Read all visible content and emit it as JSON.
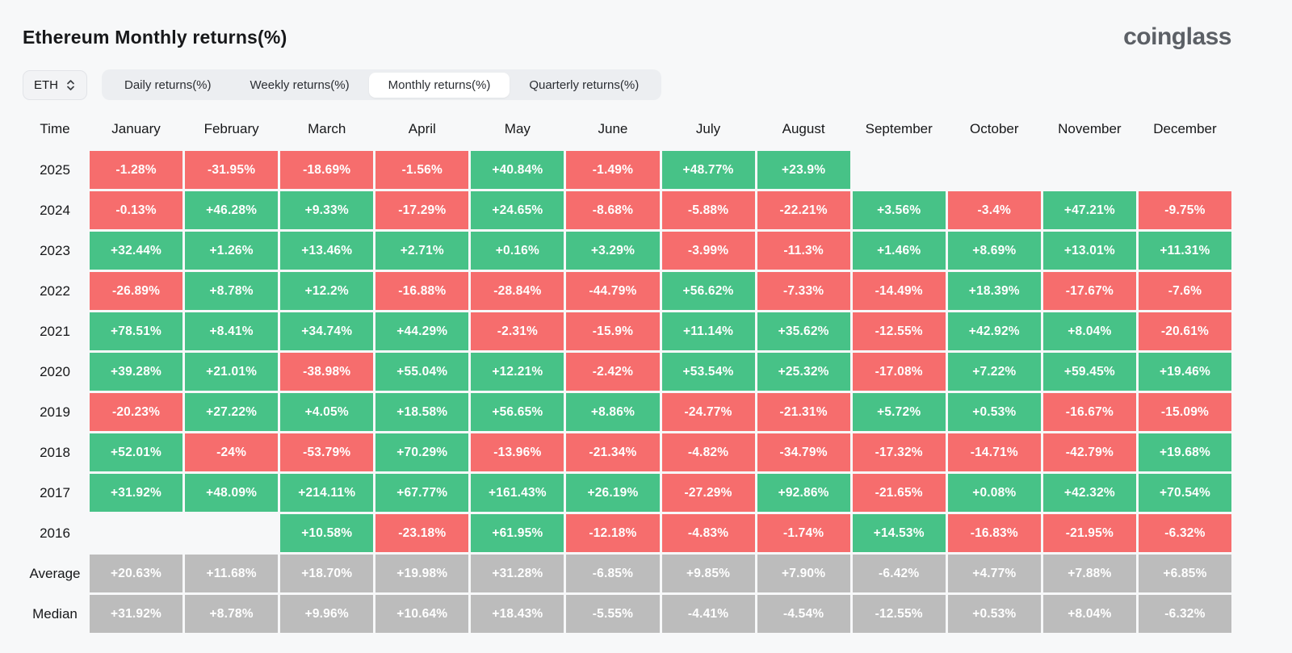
{
  "header": {
    "title": "Ethereum Monthly returns(%)",
    "logo_text": "coinglass"
  },
  "controls": {
    "symbol_select": {
      "value": "ETH"
    },
    "tabs": [
      {
        "label": "Daily returns(%)",
        "active": false
      },
      {
        "label": "Weekly returns(%)",
        "active": false
      },
      {
        "label": "Monthly returns(%)",
        "active": true
      },
      {
        "label": "Quarterly returns(%)",
        "active": false
      }
    ]
  },
  "colors": {
    "positive": "#47c287",
    "negative": "#f66d6d",
    "summary": "#bcbcbc",
    "page_bg": "#f7f8f9"
  },
  "chart_data": {
    "type": "heatmap",
    "title": "Ethereum Monthly returns(%)",
    "unit": "%",
    "legend": "green = positive monthly return, red = negative, gray = summary rows",
    "columns": [
      "Time",
      "January",
      "February",
      "March",
      "April",
      "May",
      "June",
      "July",
      "August",
      "September",
      "October",
      "November",
      "December"
    ],
    "rows": [
      {
        "label": "2025",
        "kind": "year",
        "values": [
          "-1.28%",
          "-31.95%",
          "-18.69%",
          "-1.56%",
          "+40.84%",
          "-1.49%",
          "+48.77%",
          "+23.9%",
          "",
          "",
          "",
          ""
        ]
      },
      {
        "label": "2024",
        "kind": "year",
        "values": [
          "-0.13%",
          "+46.28%",
          "+9.33%",
          "-17.29%",
          "+24.65%",
          "-8.68%",
          "-5.88%",
          "-22.21%",
          "+3.56%",
          "-3.4%",
          "+47.21%",
          "-9.75%"
        ]
      },
      {
        "label": "2023",
        "kind": "year",
        "values": [
          "+32.44%",
          "+1.26%",
          "+13.46%",
          "+2.71%",
          "+0.16%",
          "+3.29%",
          "-3.99%",
          "-11.3%",
          "+1.46%",
          "+8.69%",
          "+13.01%",
          "+11.31%"
        ]
      },
      {
        "label": "2022",
        "kind": "year",
        "values": [
          "-26.89%",
          "+8.78%",
          "+12.2%",
          "-16.88%",
          "-28.84%",
          "-44.79%",
          "+56.62%",
          "-7.33%",
          "-14.49%",
          "+18.39%",
          "-17.67%",
          "-7.6%"
        ]
      },
      {
        "label": "2021",
        "kind": "year",
        "values": [
          "+78.51%",
          "+8.41%",
          "+34.74%",
          "+44.29%",
          "-2.31%",
          "-15.9%",
          "+11.14%",
          "+35.62%",
          "-12.55%",
          "+42.92%",
          "+8.04%",
          "-20.61%"
        ]
      },
      {
        "label": "2020",
        "kind": "year",
        "values": [
          "+39.28%",
          "+21.01%",
          "-38.98%",
          "+55.04%",
          "+12.21%",
          "-2.42%",
          "+53.54%",
          "+25.32%",
          "-17.08%",
          "+7.22%",
          "+59.45%",
          "+19.46%"
        ]
      },
      {
        "label": "2019",
        "kind": "year",
        "values": [
          "-20.23%",
          "+27.22%",
          "+4.05%",
          "+18.58%",
          "+56.65%",
          "+8.86%",
          "-24.77%",
          "-21.31%",
          "+5.72%",
          "+0.53%",
          "-16.67%",
          "-15.09%"
        ]
      },
      {
        "label": "2018",
        "kind": "year",
        "values": [
          "+52.01%",
          "-24%",
          "-53.79%",
          "+70.29%",
          "-13.96%",
          "-21.34%",
          "-4.82%",
          "-34.79%",
          "-17.32%",
          "-14.71%",
          "-42.79%",
          "+19.68%"
        ]
      },
      {
        "label": "2017",
        "kind": "year",
        "values": [
          "+31.92%",
          "+48.09%",
          "+214.11%",
          "+67.77%",
          "+161.43%",
          "+26.19%",
          "-27.29%",
          "+92.86%",
          "-21.65%",
          "+0.08%",
          "+42.32%",
          "+70.54%"
        ]
      },
      {
        "label": "2016",
        "kind": "year",
        "values": [
          "",
          "",
          "+10.58%",
          "-23.18%",
          "+61.95%",
          "-12.18%",
          "-4.83%",
          "-1.74%",
          "+14.53%",
          "-16.83%",
          "-21.95%",
          "-6.32%"
        ]
      },
      {
        "label": "Average",
        "kind": "summary",
        "values": [
          "+20.63%",
          "+11.68%",
          "+18.70%",
          "+19.98%",
          "+31.28%",
          "-6.85%",
          "+9.85%",
          "+7.90%",
          "-6.42%",
          "+4.77%",
          "+7.88%",
          "+6.85%"
        ]
      },
      {
        "label": "Median",
        "kind": "summary",
        "values": [
          "+31.92%",
          "+8.78%",
          "+9.96%",
          "+10.64%",
          "+18.43%",
          "-5.55%",
          "-4.41%",
          "-4.54%",
          "-12.55%",
          "+0.53%",
          "+8.04%",
          "-6.32%"
        ]
      }
    ]
  }
}
